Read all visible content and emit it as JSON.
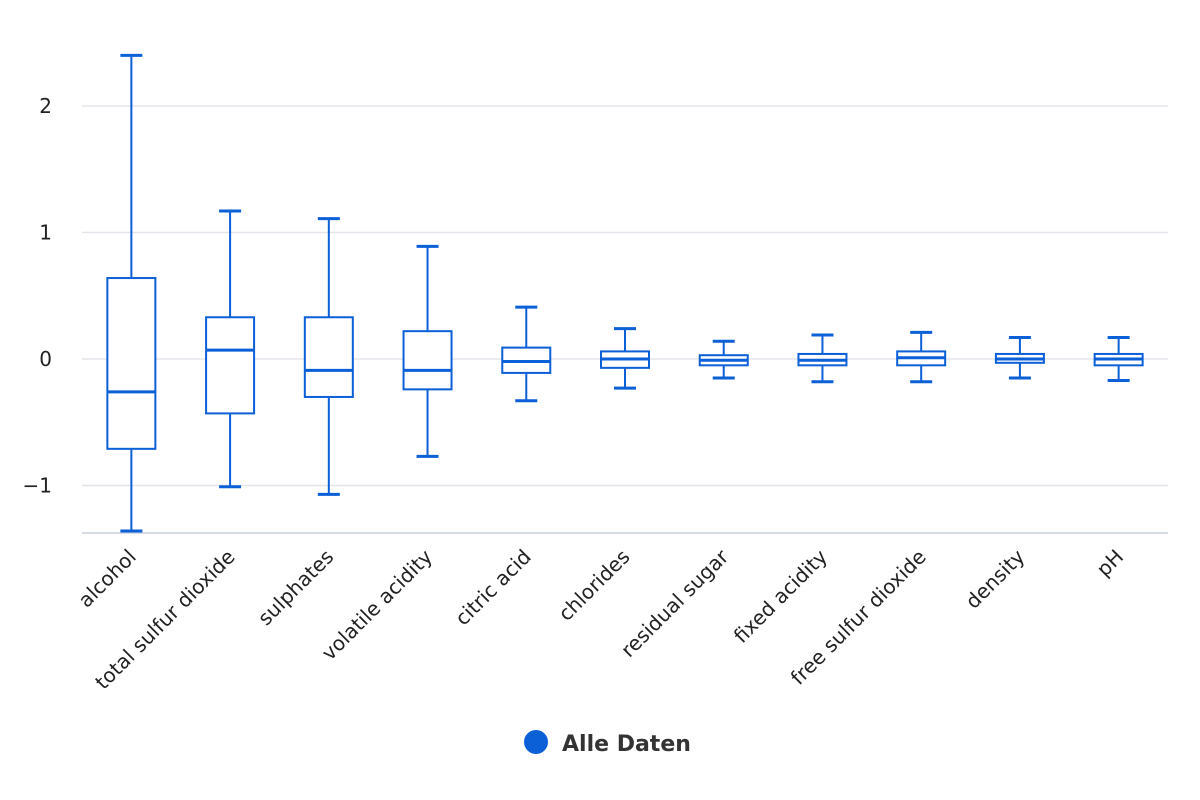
{
  "chart_data": {
    "type": "boxplot",
    "title": "",
    "xlabel": "",
    "ylabel": "",
    "ylim": [
      -1.4,
      2.5
    ],
    "yticks": [
      -1,
      0,
      1,
      2
    ],
    "ytick_labels": [
      "−1",
      "0",
      "1",
      "2"
    ],
    "grid": true,
    "legend_position": "bottom-center",
    "series": [
      {
        "name": "Alle Daten",
        "color": "#0b5fd7",
        "categories": [
          "alcohol",
          "total sulfur dioxide",
          "sulphates",
          "volatile acidity",
          "citric acid",
          "chlorides",
          "residual sugar",
          "fixed acidity",
          "free sulfur dioxide",
          "density",
          "pH"
        ],
        "boxes": [
          {
            "min": -1.36,
            "q1": -0.71,
            "median": -0.26,
            "q3": 0.64,
            "max": 2.4
          },
          {
            "min": -1.01,
            "q1": -0.43,
            "median": 0.07,
            "q3": 0.33,
            "max": 1.17
          },
          {
            "min": -1.07,
            "q1": -0.3,
            "median": -0.09,
            "q3": 0.33,
            "max": 1.11
          },
          {
            "min": -0.77,
            "q1": -0.24,
            "median": -0.09,
            "q3": 0.22,
            "max": 0.89
          },
          {
            "min": -0.33,
            "q1": -0.11,
            "median": -0.02,
            "q3": 0.09,
            "max": 0.41
          },
          {
            "min": -0.23,
            "q1": -0.07,
            "median": 0.0,
            "q3": 0.06,
            "max": 0.24
          },
          {
            "min": -0.15,
            "q1": -0.05,
            "median": -0.01,
            "q3": 0.03,
            "max": 0.14
          },
          {
            "min": -0.18,
            "q1": -0.05,
            "median": -0.01,
            "q3": 0.04,
            "max": 0.19
          },
          {
            "min": -0.18,
            "q1": -0.05,
            "median": 0.01,
            "q3": 0.06,
            "max": 0.21
          },
          {
            "min": -0.15,
            "q1": -0.03,
            "median": 0.0,
            "q3": 0.04,
            "max": 0.17
          },
          {
            "min": -0.17,
            "q1": -0.05,
            "median": 0.0,
            "q3": 0.04,
            "max": 0.17
          }
        ]
      }
    ]
  },
  "legend": {
    "label": "Alle Daten",
    "color": "#0b5fd7"
  }
}
